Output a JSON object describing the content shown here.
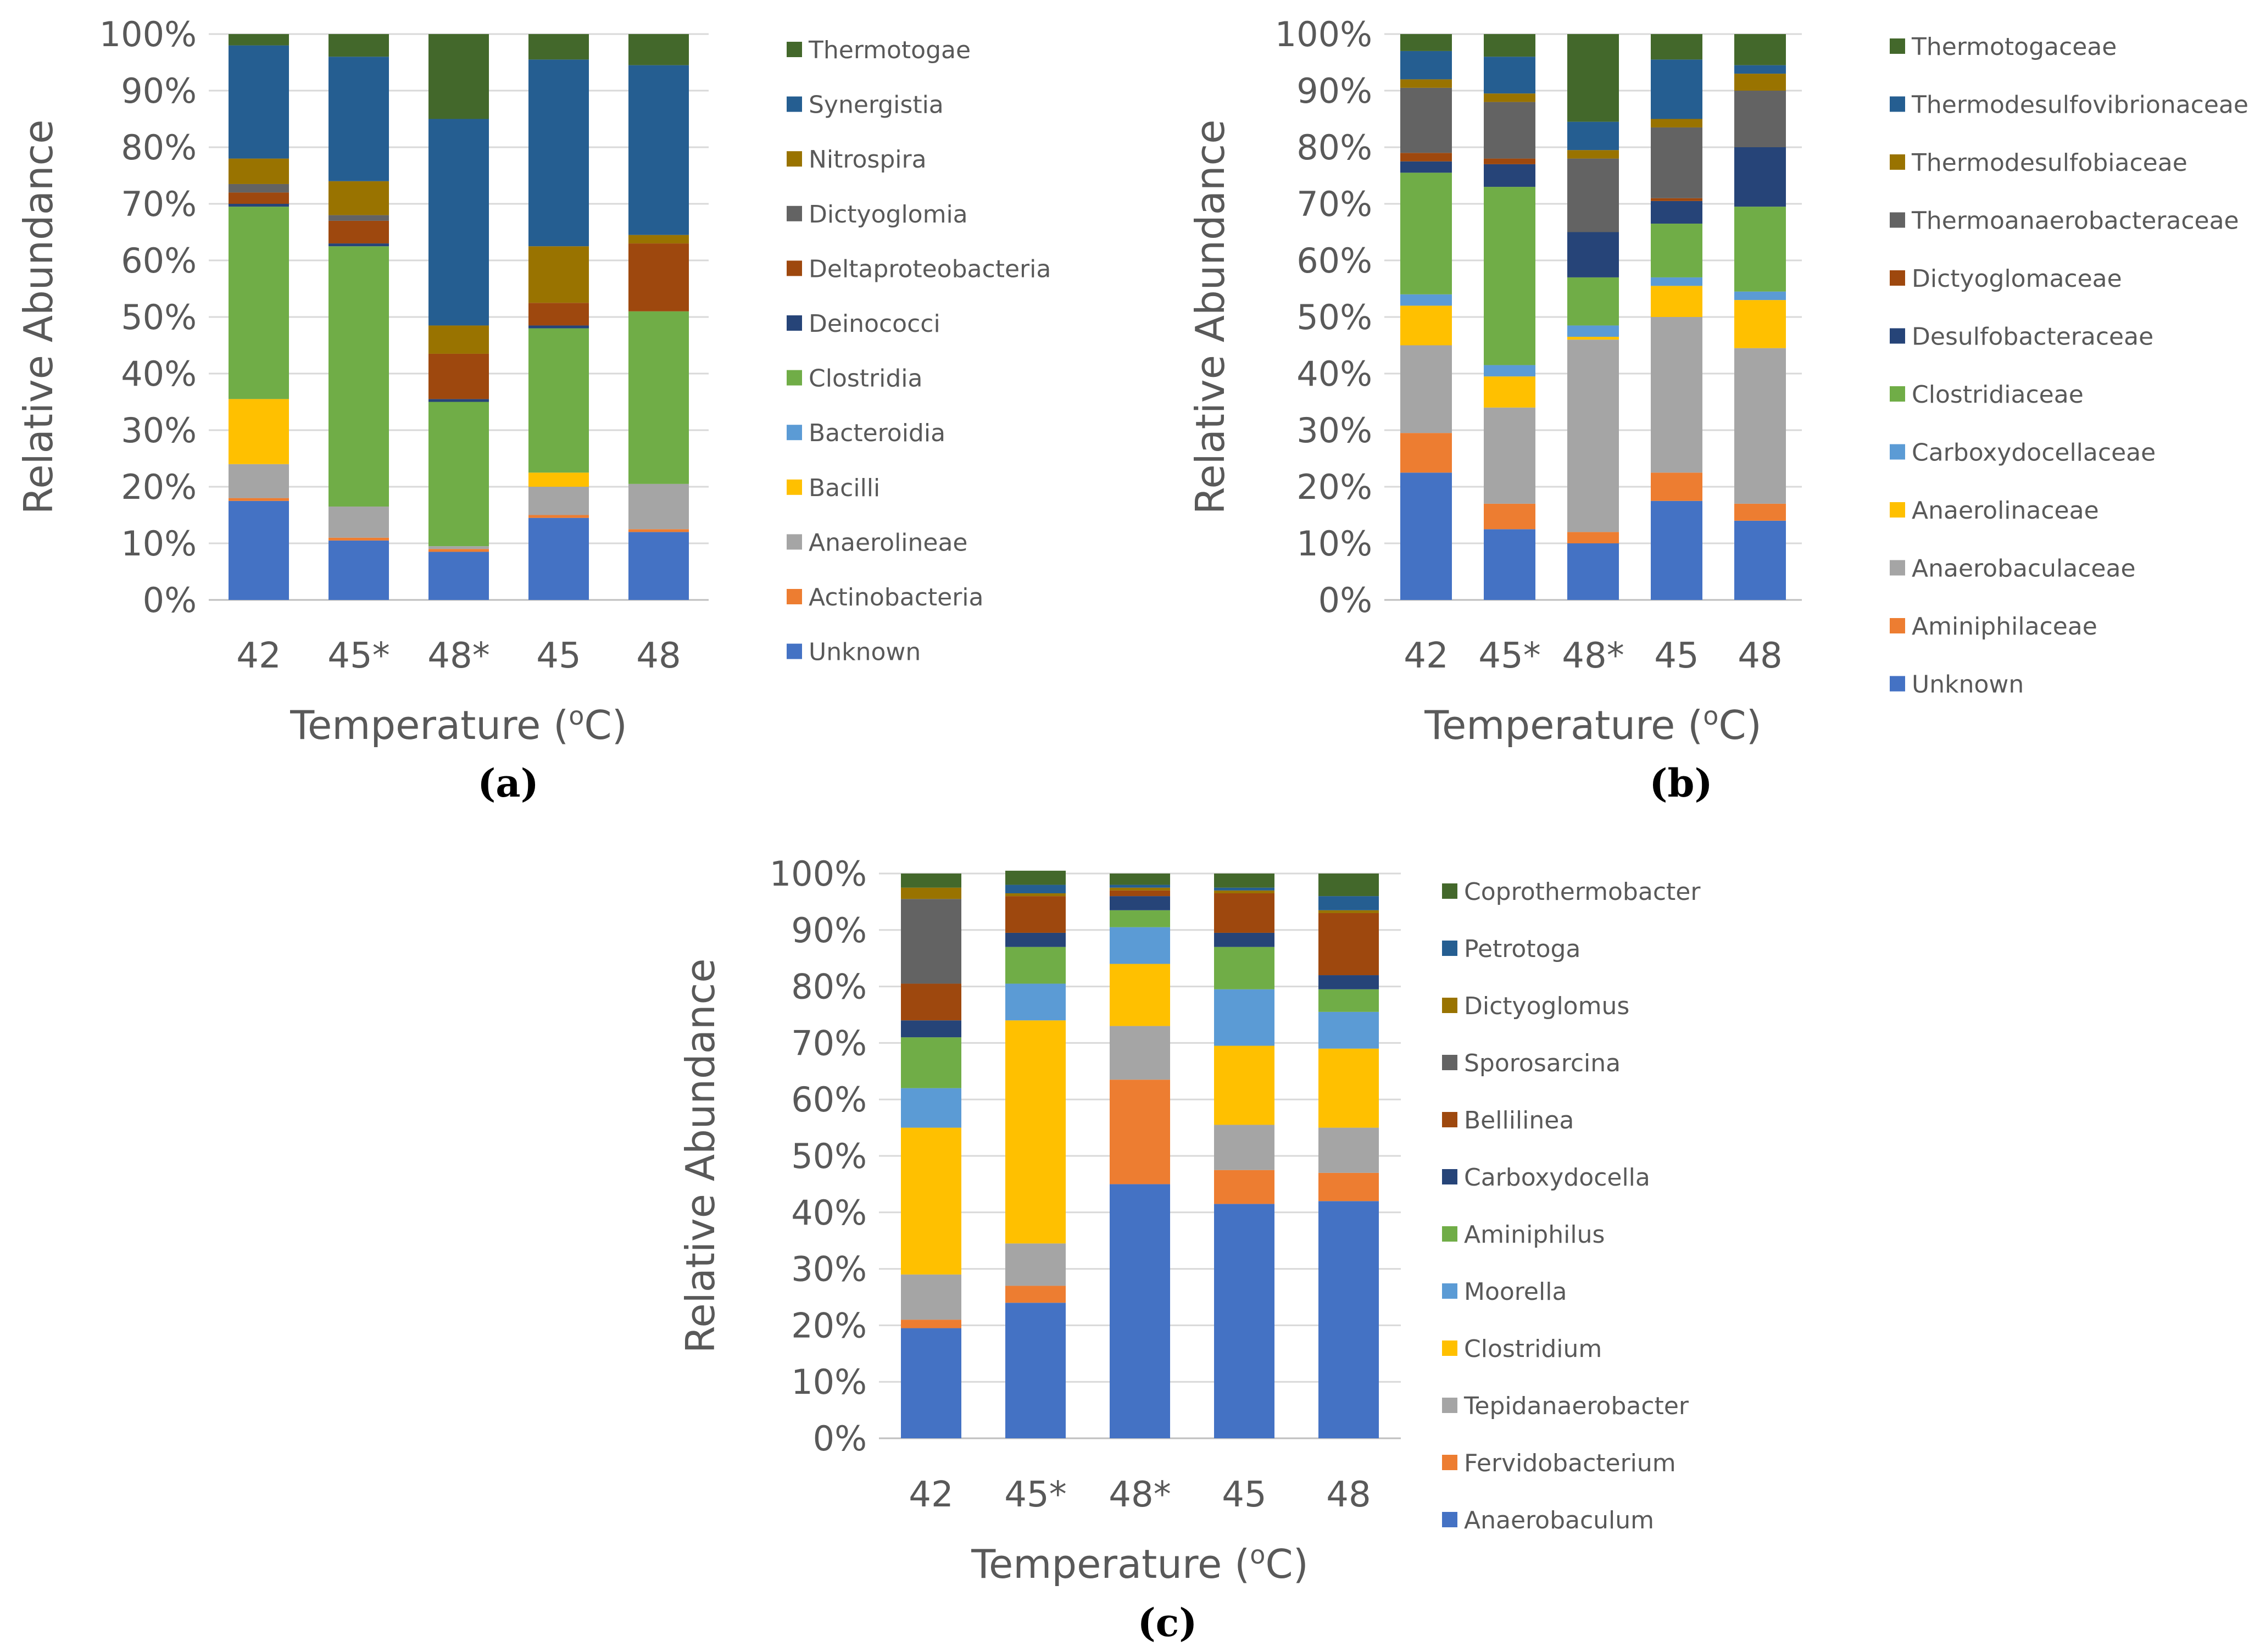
{
  "figure": {
    "colors": {
      "text": "#595959",
      "grid": "#d9d9d9",
      "axis": "#bfbfbf"
    }
  },
  "chart_data": [
    {
      "type": "bar",
      "stacked": true,
      "panel_label": "(a)",
      "title": "",
      "xlabel": "Temperature (°C)",
      "ylabel": "Relative Abundance",
      "ylim": [
        0,
        100
      ],
      "yticks": [
        "0%",
        "10%",
        "20%",
        "30%",
        "40%",
        "50%",
        "60%",
        "70%",
        "80%",
        "90%",
        "100%"
      ],
      "categories": [
        "42",
        "45*",
        "48*",
        "45",
        "48"
      ],
      "legend_position": "right",
      "series": [
        {
          "name": "Unknown",
          "color": "#4472c4",
          "values": [
            17.5,
            10.5,
            8.5,
            14.5,
            12
          ]
        },
        {
          "name": "Actinobacteria",
          "color": "#ed7d31",
          "values": [
            0.5,
            0.5,
            0.5,
            0.5,
            0.5
          ]
        },
        {
          "name": "Anaerolineae",
          "color": "#a5a5a5",
          "values": [
            6,
            5.5,
            0.5,
            5,
            8
          ]
        },
        {
          "name": "Bacilli",
          "color": "#ffc000",
          "values": [
            11.5,
            0,
            0,
            2.5,
            0
          ]
        },
        {
          "name": "Bacteroidia",
          "color": "#5b9bd5",
          "values": [
            0,
            0,
            0,
            0,
            0
          ]
        },
        {
          "name": "Clostridia",
          "color": "#70ad47",
          "values": [
            34,
            46,
            25.5,
            25.5,
            30.5
          ]
        },
        {
          "name": "Deinococci",
          "color": "#264478",
          "values": [
            0.5,
            0.5,
            0.5,
            0.5,
            0
          ]
        },
        {
          "name": "Deltaproteobacteria",
          "color": "#9e480e",
          "values": [
            2,
            4,
            8,
            4,
            12
          ]
        },
        {
          "name": "Dictyoglomia",
          "color": "#636363",
          "values": [
            1.5,
            1,
            0,
            0,
            0
          ]
        },
        {
          "name": "Nitrospira",
          "color": "#997300",
          "values": [
            4.5,
            6,
            5,
            10,
            1.5
          ]
        },
        {
          "name": "Synergistia",
          "color": "#255e91",
          "values": [
            20,
            22,
            36.5,
            33,
            30
          ]
        },
        {
          "name": "Thermotogae",
          "color": "#43682b",
          "values": [
            2,
            4,
            15,
            4.5,
            5.5
          ]
        }
      ]
    },
    {
      "type": "bar",
      "stacked": true,
      "panel_label": "(b)",
      "title": "",
      "xlabel": "Temperature (°C)",
      "ylabel": "Relative Abundance",
      "ylim": [
        0,
        100
      ],
      "yticks": [
        "0%",
        "10%",
        "20%",
        "30%",
        "40%",
        "50%",
        "60%",
        "70%",
        "80%",
        "90%",
        "100%"
      ],
      "categories": [
        "42",
        "45*",
        "48*",
        "45",
        "48"
      ],
      "legend_position": "right",
      "series": [
        {
          "name": "Unknown",
          "color": "#4472c4",
          "values": [
            22.5,
            12.5,
            10,
            17.5,
            14
          ]
        },
        {
          "name": "Aminiphilaceae",
          "color": "#ed7d31",
          "values": [
            7,
            4.5,
            2,
            5,
            3
          ]
        },
        {
          "name": "Anaerobaculaceae",
          "color": "#a5a5a5",
          "values": [
            15.5,
            17,
            34,
            27.5,
            27.5
          ]
        },
        {
          "name": "Anaerolinaceae",
          "color": "#ffc000",
          "values": [
            7,
            5.5,
            0.5,
            5.5,
            8.5
          ]
        },
        {
          "name": "Carboxydocellaceae",
          "color": "#5b9bd5",
          "values": [
            2,
            2,
            2,
            1.5,
            1.5
          ]
        },
        {
          "name": "Clostridiaceae",
          "color": "#70ad47",
          "values": [
            21.5,
            31.5,
            8.5,
            9.5,
            15
          ]
        },
        {
          "name": "Desulfobacteraceae",
          "color": "#264478",
          "values": [
            2,
            4,
            8,
            4,
            10.5
          ]
        },
        {
          "name": "Dictyoglomaceae",
          "color": "#9e480e",
          "values": [
            1.5,
            1,
            0,
            0.5,
            0
          ]
        },
        {
          "name": "Thermoanaerobacteraceae",
          "color": "#636363",
          "values": [
            11.5,
            10,
            13,
            12.5,
            10
          ]
        },
        {
          "name": "Thermodesulfobiaceae",
          "color": "#997300",
          "values": [
            1.5,
            1.5,
            1.5,
            1.5,
            3
          ]
        },
        {
          "name": "Thermodesulfovibrionaceae",
          "color": "#255e91",
          "values": [
            5,
            6.5,
            5,
            10.5,
            1.5
          ]
        },
        {
          "name": "Thermotogaceae",
          "color": "#43682b",
          "values": [
            3,
            4,
            15.5,
            4.5,
            5.5
          ]
        }
      ]
    },
    {
      "type": "bar",
      "stacked": true,
      "panel_label": "(c)",
      "title": "",
      "xlabel": "Temperature (°C)",
      "ylabel": "Relative Abundance",
      "ylim": [
        0,
        100
      ],
      "yticks": [
        "0%",
        "10%",
        "20%",
        "30%",
        "40%",
        "50%",
        "60%",
        "70%",
        "80%",
        "90%",
        "100%"
      ],
      "categories": [
        "42",
        "45*",
        "48*",
        "45",
        "48"
      ],
      "legend_position": "right",
      "series": [
        {
          "name": "Anaerobaculum",
          "color": "#4472c4",
          "values": [
            19.5,
            24,
            45,
            41.5,
            42
          ]
        },
        {
          "name": "Fervidobacterium",
          "color": "#ed7d31",
          "values": [
            1.5,
            3,
            18.5,
            6,
            5
          ]
        },
        {
          "name": "Tepidanaerobacter",
          "color": "#a5a5a5",
          "values": [
            8,
            7.5,
            9.5,
            8,
            8
          ]
        },
        {
          "name": "Clostridium",
          "color": "#ffc000",
          "values": [
            26,
            39.5,
            11,
            14,
            14
          ]
        },
        {
          "name": "Moorella",
          "color": "#5b9bd5",
          "values": [
            7,
            6.5,
            6.5,
            10,
            6.5
          ]
        },
        {
          "name": "Aminiphilus",
          "color": "#70ad47",
          "values": [
            9,
            6.5,
            3,
            7.5,
            4
          ]
        },
        {
          "name": "Carboxydocella",
          "color": "#264478",
          "values": [
            3,
            2.5,
            2.5,
            2.5,
            2.5
          ]
        },
        {
          "name": "Bellilinea",
          "color": "#9e480e",
          "values": [
            6.5,
            6.5,
            1,
            7,
            11
          ]
        },
        {
          "name": "Sporosarcina",
          "color": "#636363",
          "values": [
            15,
            0,
            0,
            0,
            0
          ]
        },
        {
          "name": "Dictyoglomus",
          "color": "#997300",
          "values": [
            2,
            0.5,
            0.5,
            0.5,
            0.5
          ]
        },
        {
          "name": "Petrotoga",
          "color": "#255e91",
          "values": [
            0,
            1.5,
            0.5,
            0.5,
            2.5
          ]
        },
        {
          "name": "Coprothermobacter",
          "color": "#43682b",
          "values": [
            2.5,
            2.5,
            2,
            2.5,
            4
          ]
        }
      ]
    }
  ]
}
